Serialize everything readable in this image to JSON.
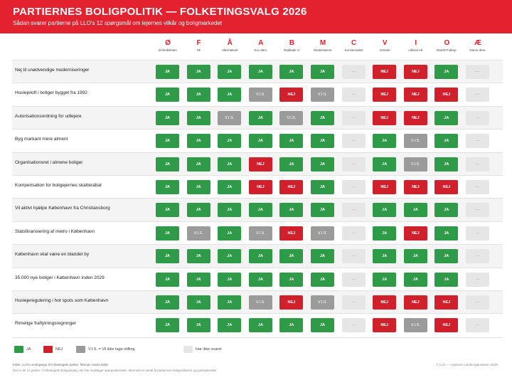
{
  "header": {
    "title": "PARTIERNES BOLIGPOLITIK — FOLKETINGSVALG 2026",
    "subtitle": "Sådan svarer partierne på LLO's 12 spørgsmål om lejernes vilkår og boligmarkedet"
  },
  "parties": [
    {
      "letter": "Ø",
      "name": "Enhedslisten"
    },
    {
      "letter": "F",
      "name": "SF"
    },
    {
      "letter": "Å",
      "name": "Alternativet"
    },
    {
      "letter": "A",
      "name": "Soc.dem."
    },
    {
      "letter": "B",
      "name": "Radikale V."
    },
    {
      "letter": "M",
      "name": "Moderaterne"
    },
    {
      "letter": "C",
      "name": "Konservative"
    },
    {
      "letter": "V",
      "name": "Venstre"
    },
    {
      "letter": "I",
      "name": "Liberal All."
    },
    {
      "letter": "O",
      "name": "Dansk Folkep."
    },
    {
      "letter": "Æ",
      "name": "Danm.dem."
    }
  ],
  "answer_labels": {
    "ja": "JA",
    "nej": "NEJ",
    "vis": "V.I.S.",
    "none": "—"
  },
  "rows": [
    {
      "question": "Nej til unødvendige moderniseringer",
      "answers": [
        "ja",
        "ja",
        "ja",
        "ja",
        "ja",
        "ja",
        "none",
        "nej",
        "nej",
        "ja",
        "none"
      ]
    },
    {
      "question": "Huslejeloft i boliger bygget fra 1992",
      "answers": [
        "ja",
        "ja",
        "ja",
        "vis",
        "nej",
        "vis",
        "none",
        "nej",
        "nej",
        "nej",
        "none"
      ]
    },
    {
      "question": "Autorisationsordning for udlejere",
      "answers": [
        "ja",
        "ja",
        "vis",
        "ja",
        "vis",
        "ja",
        "none",
        "nej",
        "nej",
        "ja",
        "none"
      ]
    },
    {
      "question": "Byg markant mere alment",
      "answers": [
        "ja",
        "ja",
        "ja",
        "ja",
        "ja",
        "ja",
        "none",
        "ja",
        "vis",
        "ja",
        "none"
      ]
    },
    {
      "question": "Organisationsret i almene boliger",
      "answers": [
        "ja",
        "ja",
        "ja",
        "nej",
        "ja",
        "ja",
        "none",
        "ja",
        "vis",
        "ja",
        "none"
      ]
    },
    {
      "question": "Kompensation for boligejernes skatterabat",
      "answers": [
        "ja",
        "ja",
        "ja",
        "nej",
        "nej",
        "ja",
        "none",
        "nej",
        "nej",
        "nej",
        "none"
      ]
    },
    {
      "question": "Vil aktivt hjælpe København fra Christiansborg",
      "answers": [
        "ja",
        "ja",
        "ja",
        "ja",
        "ja",
        "ja",
        "none",
        "ja",
        "ja",
        "ja",
        "none"
      ]
    },
    {
      "question": "Statsfinansiering af metro i København",
      "answers": [
        "ja",
        "vis",
        "ja",
        "vis",
        "nej",
        "vis",
        "none",
        "ja",
        "nej",
        "ja",
        "none"
      ]
    },
    {
      "question": "København skal være en blandet by",
      "answers": [
        "ja",
        "ja",
        "ja",
        "ja",
        "ja",
        "ja",
        "none",
        "ja",
        "ja",
        "ja",
        "none"
      ]
    },
    {
      "question": "35.000 nye boliger i København inden 2029",
      "answers": [
        "ja",
        "ja",
        "ja",
        "ja",
        "ja",
        "ja",
        "none",
        "ja",
        "ja",
        "ja",
        "none"
      ]
    },
    {
      "question": "Huslejeregulering i hot spots som København",
      "answers": [
        "ja",
        "ja",
        "ja",
        "vis",
        "nej",
        "vis",
        "none",
        "nej",
        "nej",
        "nej",
        "none"
      ]
    },
    {
      "question": "Rimelige fraflytningsregninger",
      "answers": [
        "ja",
        "ja",
        "ja",
        "ja",
        "ja",
        "ja",
        "none",
        "nej",
        "vis",
        "nej",
        "none"
      ]
    }
  ],
  "legend": {
    "ja": "JA",
    "nej": "NEJ",
    "vis": "V.I.S. = Vil ikke tage stilling",
    "none": "Har ikke svaret"
  },
  "footer": {
    "source": "Kilde: LLO's rundspørge til Folketingets partier, februar–marts 2026",
    "note": "Det er de 11 partier i Folketingets Boligudvalg, der har modtaget spørgeskemaet. Skemaet er sendt til partiernes boligordførere og partisekretær.",
    "copyright": "© LLO — Lejernes Landsorganisation 2026"
  },
  "colors": {
    "brand": "#e4212e",
    "ja": "#2f9a48",
    "nej": "#d0202b",
    "vis": "#9b9b9b",
    "none": "#e6e6e6"
  }
}
